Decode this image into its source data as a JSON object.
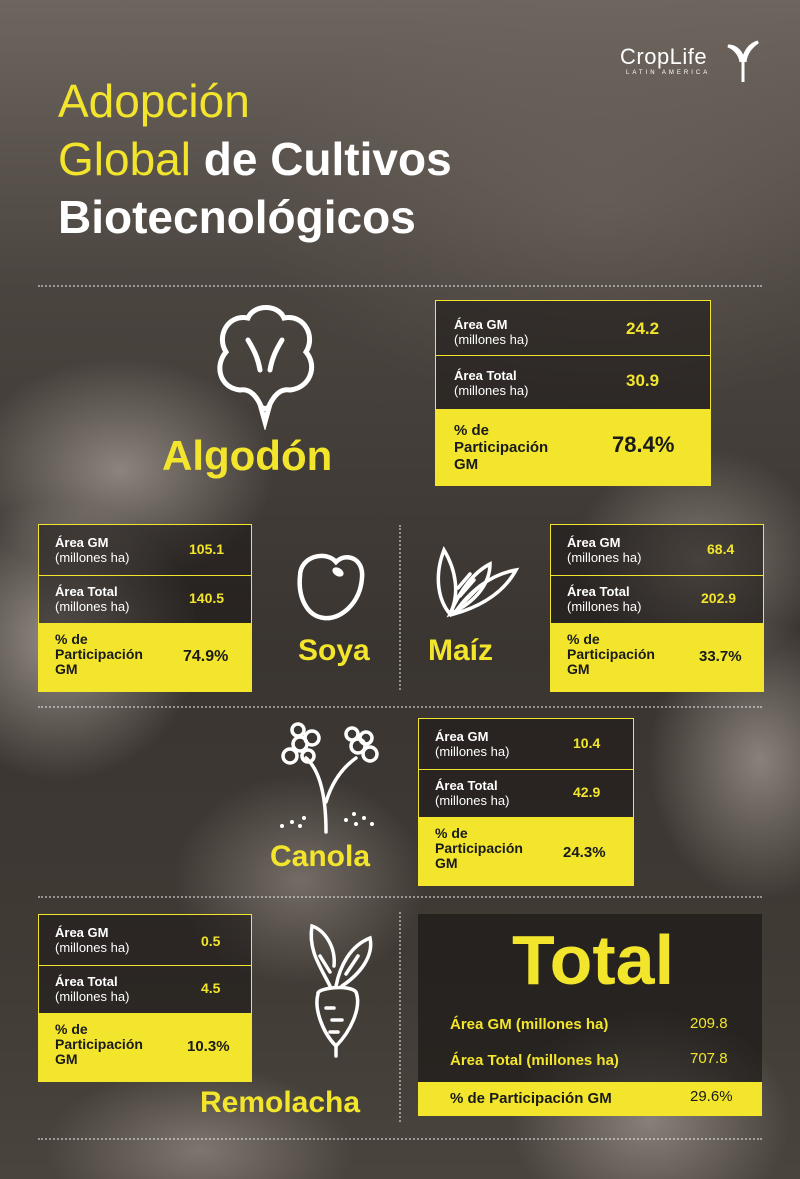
{
  "header": {
    "title_line1": "Adopción",
    "title_line2_light": "Global ",
    "title_line2_bold": "de Cultivos",
    "title_line3": "Biotecnológicos"
  },
  "logo": {
    "name": "CropLife",
    "sub": "LATIN AMERICA"
  },
  "labels": {
    "area_gm": "Área GM",
    "area_total": "Área Total",
    "unit": "(millones ha)",
    "pct_line1": "% de",
    "pct_line2": "Participación",
    "pct_line3": "GM"
  },
  "crops": {
    "algodon": {
      "name": "Algodón",
      "area_gm": "24.2",
      "area_total": "30.9",
      "pct": "78.4%",
      "icon": "cotton-icon"
    },
    "soya": {
      "name": "Soya",
      "area_gm": "105.1",
      "area_total": "140.5",
      "pct": "74.9%",
      "icon": "soybean-icon"
    },
    "maiz": {
      "name": "Maíz",
      "area_gm": "68.4",
      "area_total": "202.9",
      "pct": "33.7%",
      "icon": "corn-icon"
    },
    "canola": {
      "name": "Canola",
      "area_gm": "10.4",
      "area_total": "42.9",
      "pct": "24.3%",
      "icon": "canola-icon"
    },
    "remolacha": {
      "name": "Remolacha",
      "area_gm": "0.5",
      "area_total": "4.5",
      "pct": "10.3%",
      "icon": "beet-icon"
    }
  },
  "total": {
    "title": "Total",
    "area_gm_label": "Área GM (millones ha)",
    "area_gm": "209.8",
    "area_total_label": "Área Total (millones ha)",
    "area_total": "707.8",
    "pct_label": "% de Participación GM",
    "pct": "29.6%"
  },
  "colors": {
    "accent": "#f2e52c",
    "text": "#ffffff",
    "dark": "#1a1a1a"
  }
}
